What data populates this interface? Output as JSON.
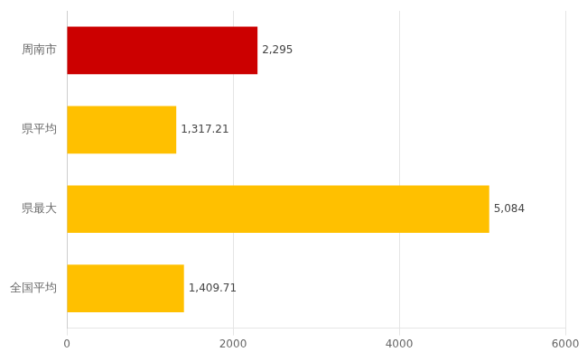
{
  "chart_data": {
    "type": "bar",
    "orientation": "horizontal",
    "categories": [
      "周南市",
      "県平均",
      "県最大",
      "全国平均"
    ],
    "values": [
      2295,
      1317.21,
      5084,
      1409.71
    ],
    "value_labels": [
      "2,295",
      "1,317.21",
      "5,084",
      "1,409.71"
    ],
    "colors": [
      "#CC0000",
      "#FFC000",
      "#FFC000",
      "#FFC000"
    ],
    "xlim": [
      0,
      6000
    ],
    "xticks": [
      0,
      2000,
      4000,
      6000
    ],
    "grid": true,
    "data_labels": true
  }
}
